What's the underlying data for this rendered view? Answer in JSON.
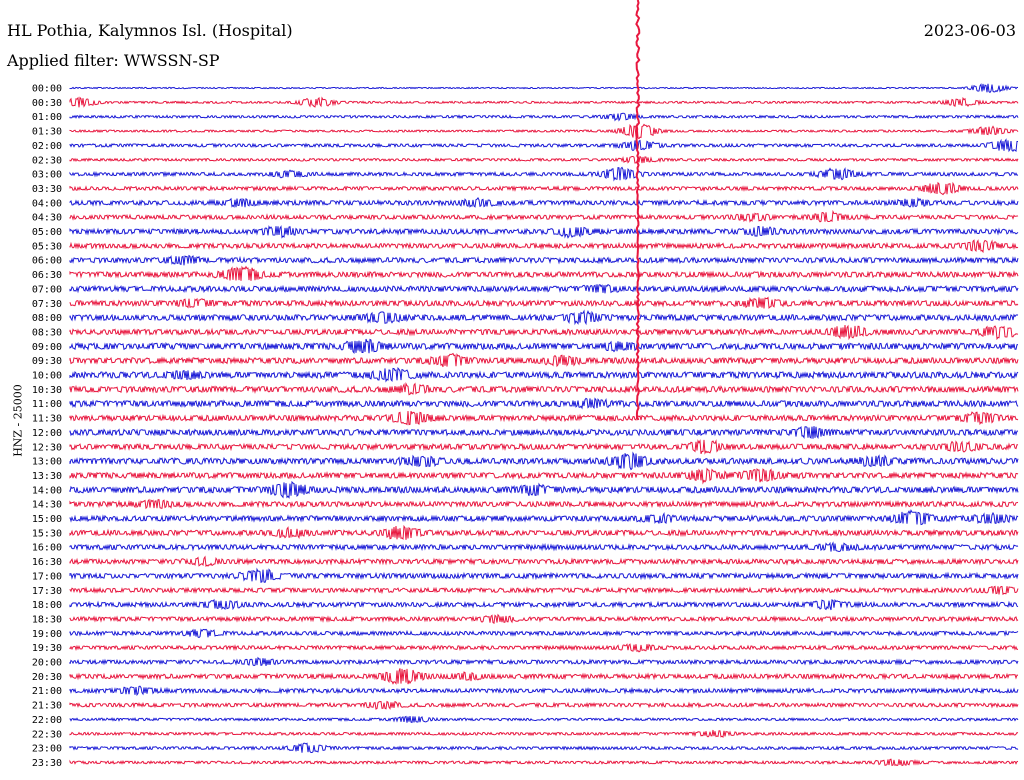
{
  "header": {
    "station": "HL Pothia, Kalymnos Isl. (Hospital)",
    "filter": "Applied filter: WWSSN-SP",
    "date": "2023-06-03"
  },
  "colors": {
    "trace_a": "#1a1ad6",
    "trace_b": "#e8173f",
    "text": "#000000",
    "background": "#ffffff"
  },
  "chart_data": {
    "type": "line",
    "title": "HL Pothia, Kalymnos Isl. (Hospital)",
    "subtitle": "Applied filter: WWSSN-SP",
    "date": "2023-06-03",
    "ylabel": "HNZ - 25000",
    "row_interval_minutes": 30,
    "series": [
      {
        "name": "00:00",
        "amplitude": 0.6,
        "events": [
          [
            0.97,
            3.0
          ]
        ]
      },
      {
        "name": "00:30",
        "amplitude": 1.0,
        "events": [
          [
            0.01,
            3.0
          ],
          [
            0.26,
            3.0
          ],
          [
            0.94,
            2.5
          ]
        ]
      },
      {
        "name": "01:00",
        "amplitude": 1.2,
        "events": [
          [
            0.58,
            2.0
          ]
        ]
      },
      {
        "name": "01:30",
        "amplitude": 1.0,
        "events": [
          [
            0.6,
            5.0
          ],
          [
            0.97,
            3.0
          ]
        ]
      },
      {
        "name": "02:00",
        "amplitude": 1.5,
        "events": [
          [
            0.6,
            3.0
          ],
          [
            0.99,
            4.0
          ]
        ]
      },
      {
        "name": "02:30",
        "amplitude": 1.2,
        "events": [
          [
            0.6,
            2.0
          ]
        ]
      },
      {
        "name": "03:00",
        "amplitude": 1.7,
        "events": [
          [
            0.23,
            2.0
          ],
          [
            0.58,
            4.0
          ],
          [
            0.81,
            4.0
          ]
        ]
      },
      {
        "name": "03:30",
        "amplitude": 1.8,
        "events": [
          [
            0.92,
            4.0
          ]
        ]
      },
      {
        "name": "04:00",
        "amplitude": 2.2,
        "events": [
          [
            0.18,
            2.0
          ],
          [
            0.43,
            2.0
          ],
          [
            0.89,
            2.0
          ]
        ]
      },
      {
        "name": "04:30",
        "amplitude": 2.0,
        "events": [
          [
            0.72,
            2.0
          ],
          [
            0.8,
            3.0
          ]
        ]
      },
      {
        "name": "05:00",
        "amplitude": 2.4,
        "events": [
          [
            0.22,
            3.0
          ],
          [
            0.53,
            3.0
          ],
          [
            0.73,
            2.5
          ]
        ]
      },
      {
        "name": "05:30",
        "amplitude": 2.3,
        "events": [
          [
            0.96,
            3.0
          ]
        ]
      },
      {
        "name": "06:00",
        "amplitude": 2.5,
        "events": [
          [
            0.12,
            2.0
          ]
        ]
      },
      {
        "name": "06:30",
        "amplitude": 2.6,
        "events": [
          [
            0.18,
            5.0
          ]
        ]
      },
      {
        "name": "07:00",
        "amplitude": 2.7,
        "events": [
          [
            0.56,
            2.0
          ]
        ]
      },
      {
        "name": "07:30",
        "amplitude": 2.6,
        "events": [
          [
            0.13,
            2.0
          ],
          [
            0.73,
            3.0
          ]
        ]
      },
      {
        "name": "08:00",
        "amplitude": 2.8,
        "events": [
          [
            0.33,
            3.0
          ],
          [
            0.54,
            3.0
          ]
        ]
      },
      {
        "name": "08:30",
        "amplitude": 2.6,
        "events": [
          [
            0.82,
            4.0
          ],
          [
            0.98,
            3.5
          ]
        ]
      },
      {
        "name": "09:00",
        "amplitude": 3.0,
        "events": [
          [
            0.31,
            4.0
          ],
          [
            0.58,
            2.0
          ]
        ]
      },
      {
        "name": "09:30",
        "amplitude": 2.8,
        "events": [
          [
            0.4,
            3.5
          ],
          [
            0.52,
            2.5
          ]
        ]
      },
      {
        "name": "10:00",
        "amplitude": 3.0,
        "events": [
          [
            0.12,
            2.0
          ],
          [
            0.34,
            4.0
          ]
        ]
      },
      {
        "name": "10:30",
        "amplitude": 2.9,
        "events": [
          [
            0.36,
            2.5
          ]
        ]
      },
      {
        "name": "11:00",
        "amplitude": 2.9,
        "events": [
          [
            0.55,
            2.0
          ]
        ]
      },
      {
        "name": "11:30",
        "amplitude": 2.7,
        "events": [
          [
            0.36,
            4.0
          ],
          [
            0.96,
            3.0
          ]
        ]
      },
      {
        "name": "12:00",
        "amplitude": 2.8,
        "events": [
          [
            0.78,
            3.0
          ]
        ]
      },
      {
        "name": "12:30",
        "amplitude": 2.6,
        "events": [
          [
            0.67,
            3.5
          ],
          [
            0.94,
            2.5
          ]
        ]
      },
      {
        "name": "13:00",
        "amplitude": 2.9,
        "events": [
          [
            0.37,
            3.0
          ],
          [
            0.59,
            5.0
          ],
          [
            0.85,
            2.5
          ]
        ]
      },
      {
        "name": "13:30",
        "amplitude": 2.7,
        "events": [
          [
            0.67,
            3.5
          ],
          [
            0.73,
            4.0
          ]
        ]
      },
      {
        "name": "14:00",
        "amplitude": 3.0,
        "events": [
          [
            0.23,
            4.5
          ],
          [
            0.49,
            2.5
          ]
        ]
      },
      {
        "name": "14:30",
        "amplitude": 2.5,
        "events": [
          [
            0.09,
            2.0
          ]
        ]
      },
      {
        "name": "15:00",
        "amplitude": 2.6,
        "events": [
          [
            0.62,
            2.0
          ],
          [
            0.89,
            5.0
          ],
          [
            0.97,
            3.0
          ]
        ]
      },
      {
        "name": "15:30",
        "amplitude": 2.5,
        "events": [
          [
            0.23,
            2.5
          ],
          [
            0.35,
            4.0
          ]
        ]
      },
      {
        "name": "16:00",
        "amplitude": 2.4,
        "events": [
          [
            0.81,
            2.0
          ]
        ]
      },
      {
        "name": "16:30",
        "amplitude": 2.3,
        "events": [
          [
            0.14,
            2.0
          ]
        ]
      },
      {
        "name": "17:00",
        "amplitude": 2.4,
        "events": [
          [
            0.2,
            4.0
          ]
        ]
      },
      {
        "name": "17:30",
        "amplitude": 2.1,
        "events": [
          [
            0.98,
            2.0
          ]
        ]
      },
      {
        "name": "18:00",
        "amplitude": 2.2,
        "events": [
          [
            0.16,
            2.5
          ],
          [
            0.8,
            2.5
          ]
        ]
      },
      {
        "name": "18:30",
        "amplitude": 2.0,
        "events": [
          [
            0.45,
            2.0
          ]
        ]
      },
      {
        "name": "19:00",
        "amplitude": 1.9,
        "events": [
          [
            0.14,
            2.0
          ]
        ]
      },
      {
        "name": "19:30",
        "amplitude": 1.8,
        "events": [
          [
            0.6,
            2.0
          ]
        ]
      },
      {
        "name": "20:00",
        "amplitude": 1.9,
        "events": [
          [
            0.2,
            2.0
          ]
        ]
      },
      {
        "name": "20:30",
        "amplitude": 2.2,
        "events": [
          [
            0.35,
            5.0
          ],
          [
            0.42,
            2.0
          ]
        ]
      },
      {
        "name": "21:00",
        "amplitude": 2.0,
        "events": [
          [
            0.07,
            2.0
          ]
        ]
      },
      {
        "name": "21:30",
        "amplitude": 1.8,
        "events": [
          [
            0.33,
            2.0
          ]
        ]
      },
      {
        "name": "22:00",
        "amplitude": 1.2,
        "events": [
          [
            0.36,
            2.0
          ]
        ]
      },
      {
        "name": "22:30",
        "amplitude": 1.3,
        "events": [
          [
            0.68,
            2.0
          ]
        ]
      },
      {
        "name": "23:00",
        "amplitude": 1.4,
        "events": [
          [
            0.25,
            3.0
          ]
        ]
      },
      {
        "name": "23:30",
        "amplitude": 1.3,
        "events": [
          [
            0.87,
            2.0
          ]
        ]
      }
    ],
    "major_event": {
      "time": "01:30",
      "x_fraction": 0.6
    }
  }
}
